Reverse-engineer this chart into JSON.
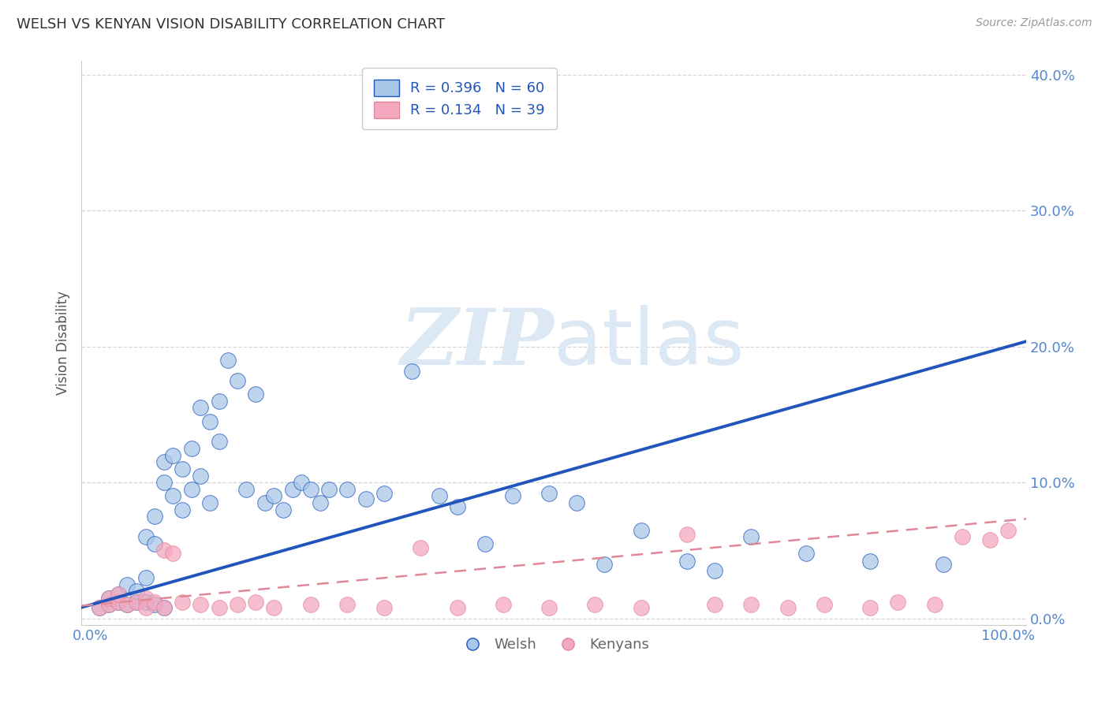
{
  "title": "WELSH VS KENYAN VISION DISABILITY CORRELATION CHART",
  "source": "Source: ZipAtlas.com",
  "ylabel": "Vision Disability",
  "legend_xlabel": "Welsh",
  "legend_xlabel2": "Kenyans",
  "welsh_R": 0.396,
  "welsh_N": 60,
  "kenyan_R": 0.134,
  "kenyan_N": 39,
  "xlim": [
    -0.01,
    1.02
  ],
  "ylim": [
    -0.005,
    0.41
  ],
  "xticks": [
    0.0,
    1.0
  ],
  "yticks": [
    0.0,
    0.1,
    0.2,
    0.3,
    0.4
  ],
  "welsh_color": "#a8c8e8",
  "kenyan_color": "#f4a8c0",
  "welsh_line_color": "#2255bb",
  "kenyan_line_color": "#e08898",
  "legend_text_color": "#2255bb",
  "axis_tick_color": "#5588cc",
  "watermark_color": "#dce8f4",
  "welsh_x": [
    0.01,
    0.02,
    0.02,
    0.03,
    0.03,
    0.04,
    0.04,
    0.05,
    0.05,
    0.06,
    0.06,
    0.06,
    0.07,
    0.07,
    0.07,
    0.08,
    0.08,
    0.08,
    0.09,
    0.09,
    0.1,
    0.1,
    0.11,
    0.11,
    0.12,
    0.12,
    0.13,
    0.13,
    0.14,
    0.14,
    0.15,
    0.16,
    0.17,
    0.18,
    0.19,
    0.2,
    0.21,
    0.22,
    0.23,
    0.24,
    0.25,
    0.26,
    0.28,
    0.3,
    0.32,
    0.35,
    0.38,
    0.4,
    0.43,
    0.46,
    0.5,
    0.53,
    0.56,
    0.6,
    0.65,
    0.68,
    0.72,
    0.78,
    0.85,
    0.93
  ],
  "welsh_y": [
    0.008,
    0.01,
    0.015,
    0.012,
    0.018,
    0.01,
    0.025,
    0.012,
    0.02,
    0.03,
    0.012,
    0.06,
    0.01,
    0.055,
    0.075,
    0.008,
    0.1,
    0.115,
    0.09,
    0.12,
    0.11,
    0.08,
    0.125,
    0.095,
    0.155,
    0.105,
    0.145,
    0.085,
    0.13,
    0.16,
    0.19,
    0.175,
    0.095,
    0.165,
    0.085,
    0.09,
    0.08,
    0.095,
    0.1,
    0.095,
    0.085,
    0.095,
    0.095,
    0.088,
    0.092,
    0.182,
    0.09,
    0.082,
    0.055,
    0.09,
    0.092,
    0.085,
    0.04,
    0.065,
    0.042,
    0.035,
    0.06,
    0.048,
    0.042,
    0.04
  ],
  "kenyan_x": [
    0.01,
    0.02,
    0.02,
    0.03,
    0.03,
    0.04,
    0.05,
    0.06,
    0.06,
    0.07,
    0.08,
    0.08,
    0.09,
    0.1,
    0.12,
    0.14,
    0.16,
    0.18,
    0.2,
    0.24,
    0.28,
    0.32,
    0.36,
    0.4,
    0.45,
    0.5,
    0.55,
    0.6,
    0.65,
    0.68,
    0.72,
    0.76,
    0.8,
    0.85,
    0.88,
    0.92,
    0.95,
    0.98,
    1.0
  ],
  "kenyan_y": [
    0.008,
    0.01,
    0.015,
    0.012,
    0.018,
    0.01,
    0.012,
    0.015,
    0.008,
    0.012,
    0.05,
    0.008,
    0.048,
    0.012,
    0.01,
    0.008,
    0.01,
    0.012,
    0.008,
    0.01,
    0.01,
    0.008,
    0.052,
    0.008,
    0.01,
    0.008,
    0.01,
    0.008,
    0.062,
    0.01,
    0.01,
    0.008,
    0.01,
    0.008,
    0.012,
    0.01,
    0.06,
    0.058,
    0.065
  ],
  "welsh_line_x0": 0.0,
  "welsh_line_y0": 0.01,
  "welsh_line_x1": 1.0,
  "welsh_line_y1": 0.2,
  "kenyan_line_x0": 0.0,
  "kenyan_line_y0": 0.01,
  "kenyan_line_x1": 1.0,
  "kenyan_line_y1": 0.072
}
